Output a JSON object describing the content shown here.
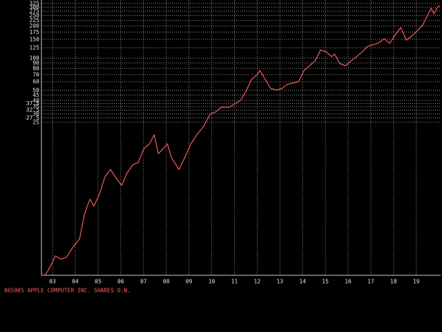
{
  "chart_data": {
    "type": "line",
    "footer": "865985  APPLE COMPUTER INC. SHARES O.N.",
    "log_scale": true,
    "grid": true,
    "xlim": [
      2002.51,
      2020.07
    ],
    "xticks": [
      {
        "value": 2003,
        "label": "03"
      },
      {
        "value": 2004,
        "label": "04"
      },
      {
        "value": 2005,
        "label": "05"
      },
      {
        "value": 2006,
        "label": "06"
      },
      {
        "value": 2007,
        "label": "07"
      },
      {
        "value": 2008,
        "label": "08"
      },
      {
        "value": 2009,
        "label": "09"
      },
      {
        "value": 2010,
        "label": "10"
      },
      {
        "value": 2011,
        "label": "11"
      },
      {
        "value": 2012,
        "label": "12"
      },
      {
        "value": 2013,
        "label": "13"
      },
      {
        "value": 2014,
        "label": "14"
      },
      {
        "value": 2015,
        "label": "15"
      },
      {
        "value": 2016,
        "label": "16"
      },
      {
        "value": 2017,
        "label": "17"
      },
      {
        "value": 2018,
        "label": "18"
      },
      {
        "value": 2019,
        "label": "19"
      }
    ],
    "ylim": [
      0.92,
      350
    ],
    "yticks": [
      325,
      300,
      275,
      250,
      225,
      200,
      175,
      150,
      125,
      100,
      90,
      80,
      70,
      60,
      50,
      45,
      40,
      37.5,
      35,
      32.5,
      30,
      27.5,
      25
    ],
    "x": [
      2002.67,
      2002.91,
      2003.12,
      2003.36,
      2003.61,
      2003.88,
      2004.19,
      2004.4,
      2004.64,
      2004.82,
      2005.07,
      2005.31,
      2005.55,
      2005.8,
      2006.04,
      2006.28,
      2006.53,
      2006.77,
      2007.01,
      2007.26,
      2007.47,
      2007.65,
      2007.86,
      2008.05,
      2008.23,
      2008.56,
      2008.81,
      2009.08,
      2009.35,
      2009.66,
      2009.93,
      2010.17,
      2010.42,
      2010.78,
      2011.02,
      2011.27,
      2011.51,
      2011.75,
      2012.0,
      2012.12,
      2012.36,
      2012.6,
      2012.85,
      2013.09,
      2013.33,
      2013.58,
      2013.82,
      2014.06,
      2014.31,
      2014.55,
      2014.79,
      2015.04,
      2015.28,
      2015.4,
      2015.64,
      2015.89,
      2016.13,
      2016.37,
      2016.62,
      2016.86,
      2017.1,
      2017.35,
      2017.59,
      2017.83,
      2018.08,
      2018.32,
      2018.56,
      2018.81,
      2019.05,
      2019.29,
      2019.53,
      2019.65,
      2019.78,
      2019.9,
      2020.02
    ],
    "series": [
      {
        "color": "#ff5a5a",
        "values": [
          0.92,
          1.12,
          1.4,
          1.3,
          1.36,
          1.67,
          2.03,
          3.42,
          4.75,
          4.1,
          5.36,
          7.78,
          9.03,
          7.44,
          6.41,
          8.39,
          10.0,
          10.5,
          14.1,
          15.7,
          19.1,
          12.7,
          14.1,
          15.7,
          11.6,
          9.03,
          11.6,
          15.7,
          19.1,
          23.1,
          29.8,
          31.2,
          34.6,
          34.6,
          37.3,
          40.2,
          48.8,
          62.9,
          69.8,
          76.4,
          62.9,
          51.8,
          50.3,
          51.8,
          56.7,
          58.4,
          60.2,
          76.4,
          84.8,
          94.1,
          119,
          114,
          103,
          109,
          88.7,
          84.8,
          94.1,
          103,
          114,
          129,
          133,
          139,
          152,
          137,
          166,
          193,
          147,
          161,
          181,
          205,
          260,
          293,
          260,
          293,
          311
        ]
      }
    ]
  }
}
